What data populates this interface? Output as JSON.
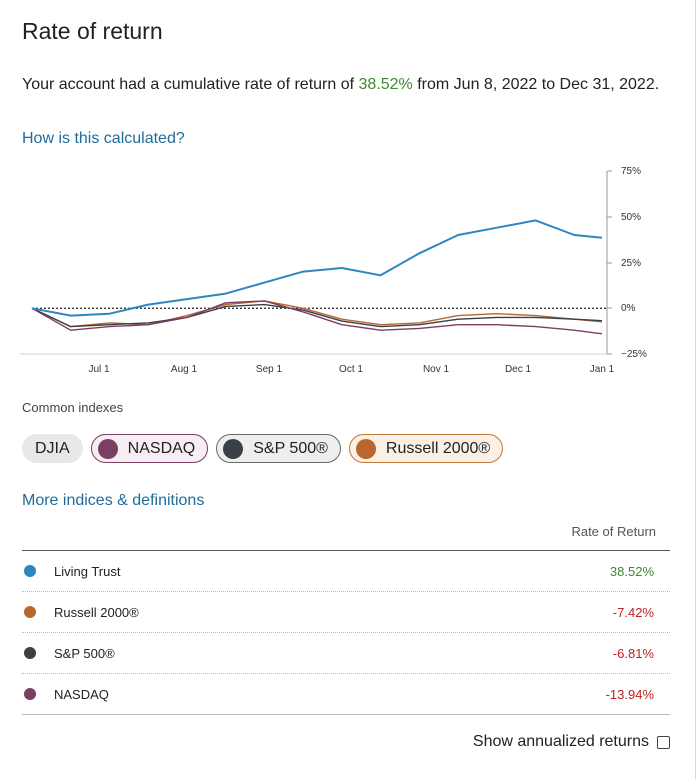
{
  "title": "Rate of return",
  "summary": {
    "prefix": "Your account had a cumulative rate of return of",
    "rate": "38.52%",
    "suffix": "from Jun 8, 2022 to Dec 31, 2022."
  },
  "how_link": "How is this calculated?",
  "chart_data": {
    "type": "line",
    "x_ticks": [
      "Jul 1",
      "Aug 1",
      "Sep 1",
      "Oct 1",
      "Nov 1",
      "Dec 1",
      "Jan 1"
    ],
    "y_ticks": [
      "75%",
      "50%",
      "25%",
      "0%",
      "−25%"
    ],
    "ylim": [
      -25,
      75
    ],
    "baseline": 0,
    "x": [
      "2022-06-08",
      "2022-06-22",
      "2022-07-06",
      "2022-07-20",
      "2022-08-03",
      "2022-08-17",
      "2022-08-31",
      "2022-09-14",
      "2022-09-28",
      "2022-10-12",
      "2022-10-26",
      "2022-11-09",
      "2022-11-23",
      "2022-12-07",
      "2022-12-21",
      "2022-12-31"
    ],
    "series": [
      {
        "name": "Living Trust",
        "color": "#2e86c1",
        "values": [
          0,
          -4,
          -3,
          2,
          5,
          8,
          14,
          20,
          22,
          18,
          30,
          40,
          44,
          48,
          40,
          38.52
        ]
      },
      {
        "name": "Russell 2000®",
        "color": "#b8682e",
        "values": [
          0,
          -10,
          -8,
          -9,
          -4,
          2,
          4,
          0,
          -6,
          -9,
          -8,
          -4,
          -3,
          -4,
          -6,
          -7.42
        ]
      },
      {
        "name": "S&P 500®",
        "color": "#3a3f48",
        "values": [
          0,
          -10,
          -9,
          -8,
          -5,
          1,
          2,
          -1,
          -7,
          -10,
          -9,
          -6,
          -5,
          -5,
          -6,
          -6.81
        ]
      },
      {
        "name": "NASDAQ",
        "color": "#7a3f62",
        "values": [
          0,
          -12,
          -10,
          -9,
          -5,
          3,
          4,
          -2,
          -9,
          -12,
          -11,
          -9,
          -9,
          -10,
          -12,
          -13.94
        ]
      }
    ]
  },
  "indexes": {
    "label": "Common indexes",
    "pills": [
      {
        "label": "DJIA"
      },
      {
        "label": "NASDAQ",
        "color": "#7a3f62"
      },
      {
        "label": "S&P 500®",
        "color": "#3a3f48"
      },
      {
        "label": "Russell 2000®",
        "color": "#b8682e"
      }
    ]
  },
  "more_link": "More indices & definitions",
  "table": {
    "header": "Rate of Return",
    "rows": [
      {
        "name": "Living Trust",
        "value": "38.52%",
        "color": "#2e86c1",
        "tone": "pos"
      },
      {
        "name": "Russell 2000®",
        "value": "-7.42%",
        "color": "#b8682e",
        "tone": "neg"
      },
      {
        "name": "S&P 500®",
        "value": "-6.81%",
        "color": "#3a3f48",
        "tone": "neg"
      },
      {
        "name": "NASDAQ",
        "value": "-13.94%",
        "color": "#7a3f62",
        "tone": "neg"
      }
    ]
  },
  "annualized_label": "Show annualized returns"
}
